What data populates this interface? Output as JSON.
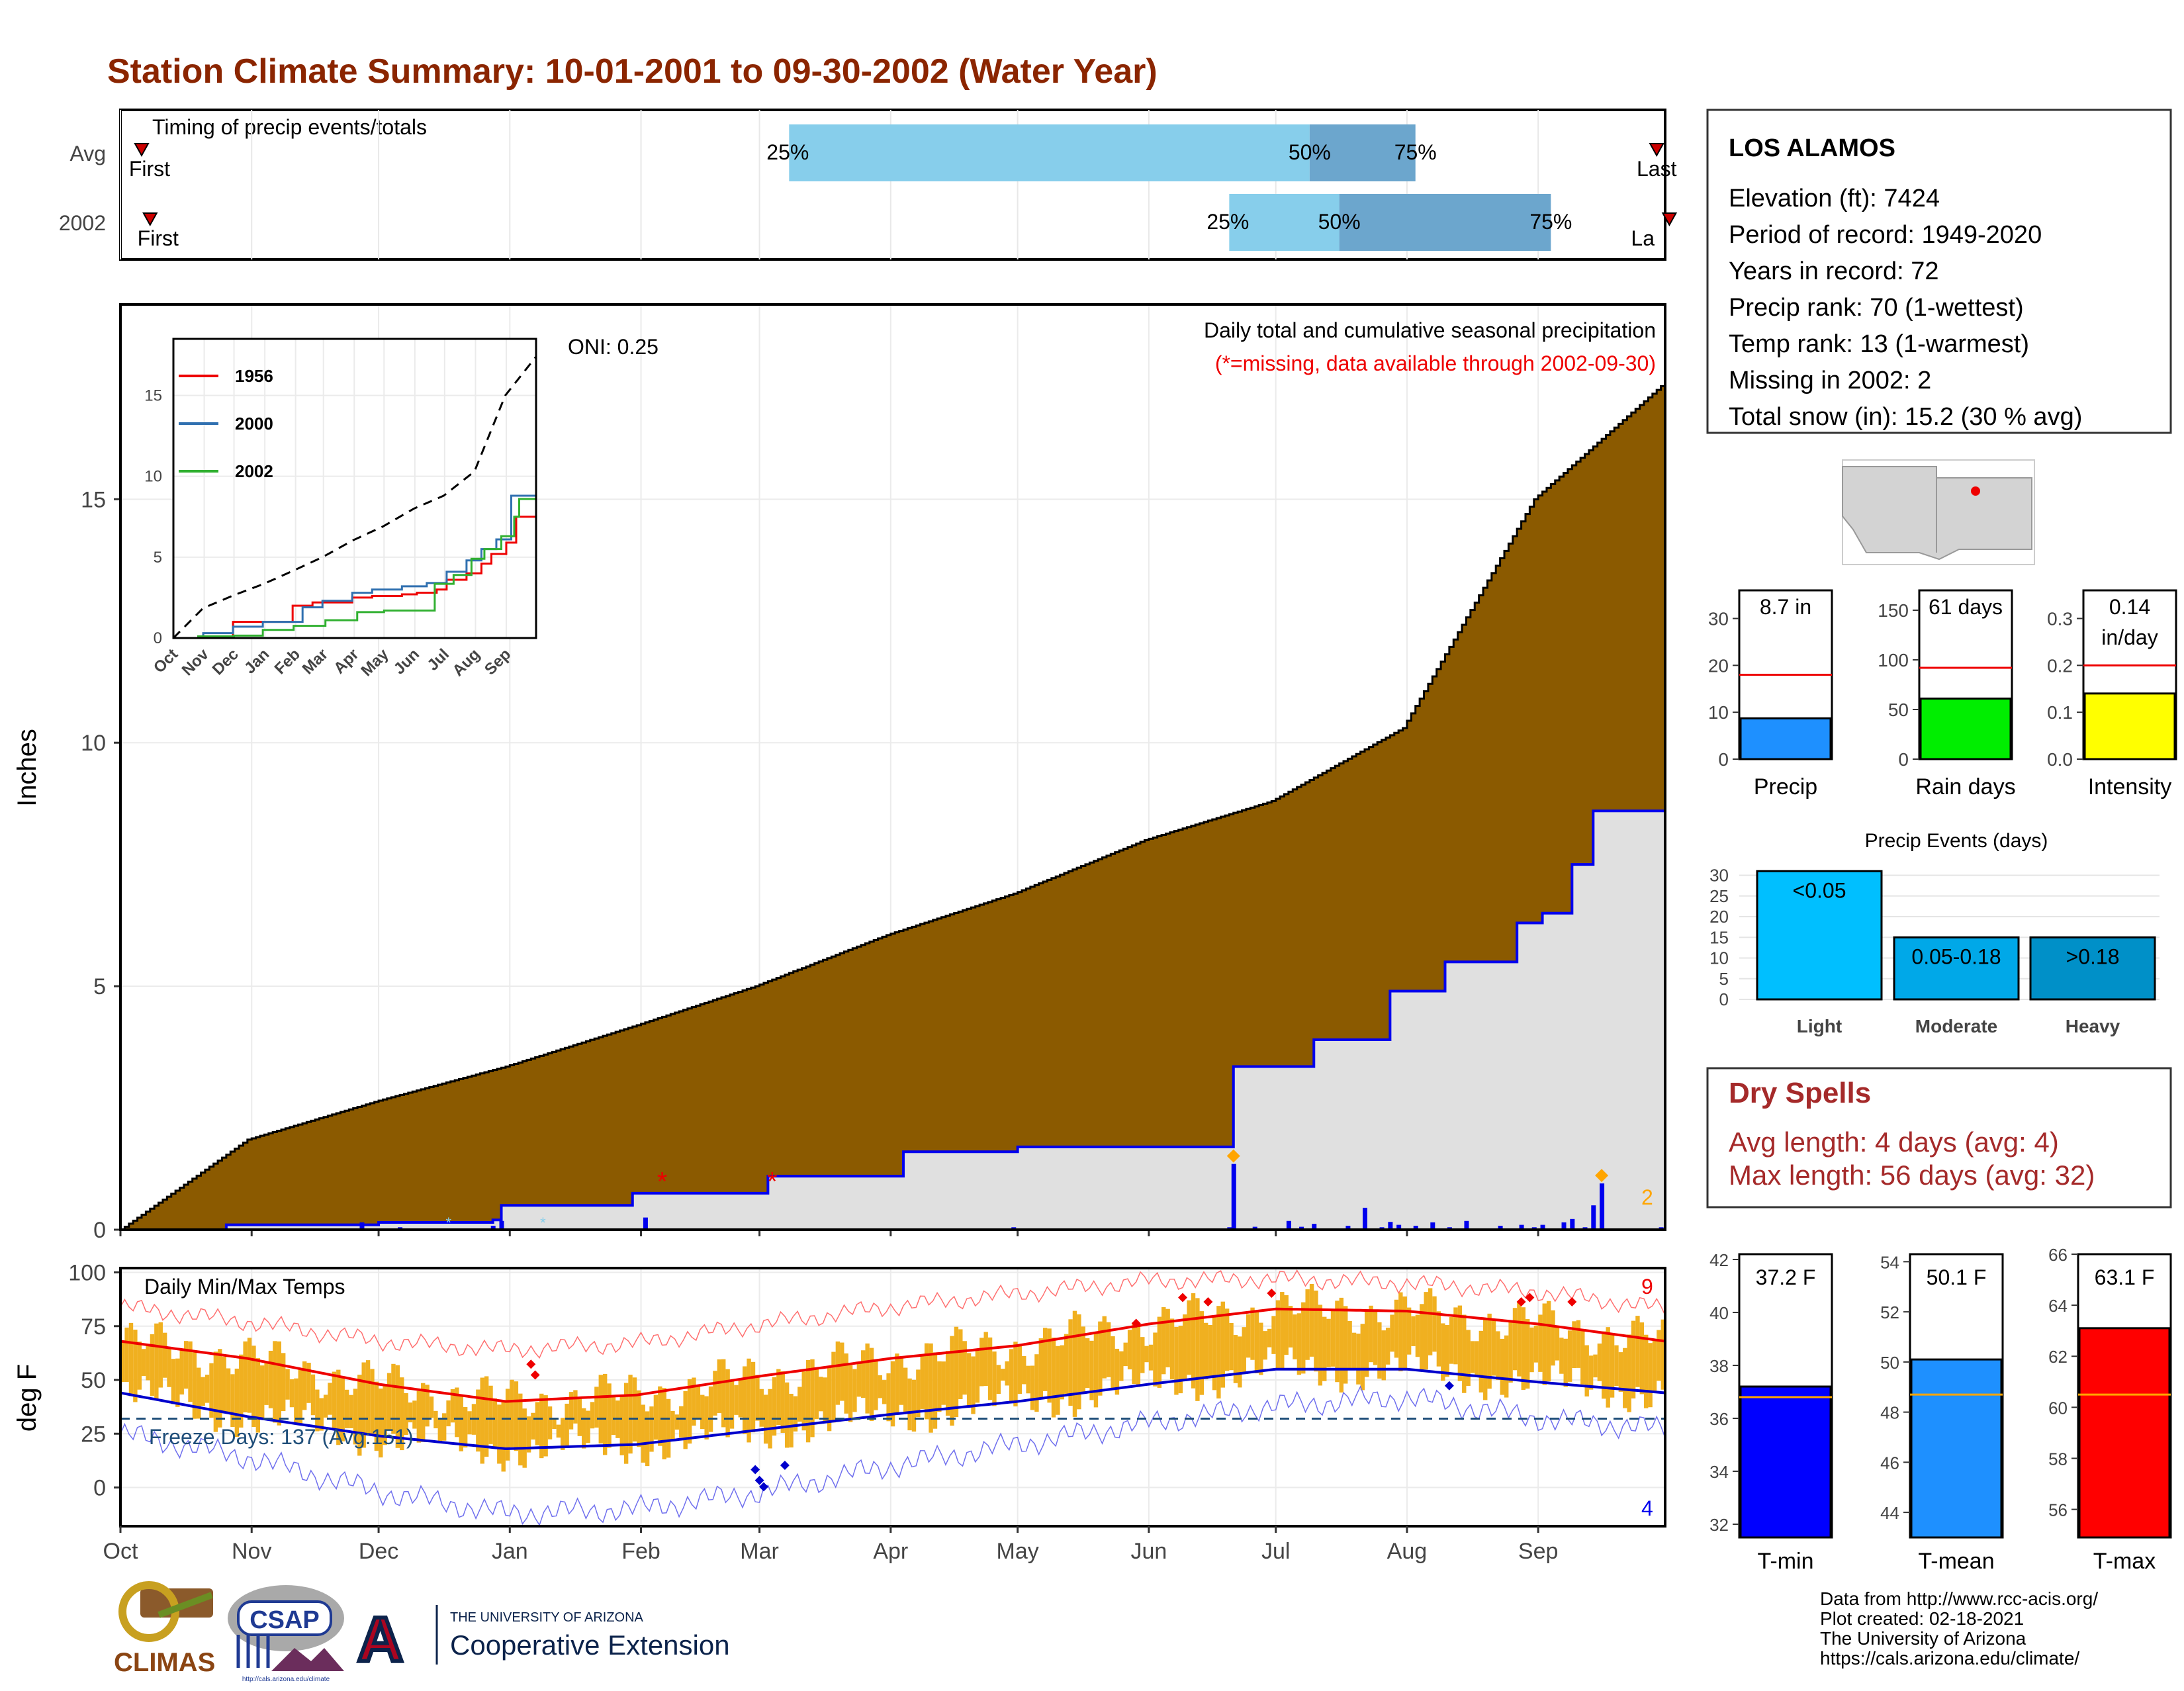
{
  "title": "Station Climate Summary: 10-01-2001 to 09-30-2002 (Water Year)",
  "station": {
    "name": "LOS ALAMOS",
    "lines": [
      "Elevation (ft): 7424",
      "Period of record: 1949-2020",
      "Years in record: 72",
      "Precip rank: 70 (1-wettest)",
      "Temp rank: 13 (1-warmest)",
      "Missing in 2002: 2",
      "Total snow (in): 15.2 (30 % avg)"
    ]
  },
  "colors": {
    "title": "#8B2500",
    "cum_avg": "#8B5A00",
    "cum_obs": "#0000EE",
    "area_obs": "#E0E0E0",
    "temp_bar": "#F0B020",
    "tmax_avg": "#EE0000",
    "tmin_avg": "#0000CC",
    "dry": "#A52A2A"
  },
  "timing": {
    "label": "Timing of precip events/totals",
    "rows": [
      "Avg",
      "2002"
    ],
    "first_label": "First",
    "last_label": "Last",
    "last_label_cut": "La",
    "pct": [
      "25%",
      "50%",
      "75%"
    ],
    "avg_doy": {
      "first": 5,
      "p25": 158,
      "p50": 281,
      "p75": 306,
      "last": 363
    },
    "obs_doy": {
      "first": 7,
      "p25": 262,
      "p50": 288,
      "p75": 338,
      "last": 366
    }
  },
  "months": [
    "Oct",
    "Nov",
    "Dec",
    "Jan",
    "Feb",
    "Mar",
    "Apr",
    "May",
    "Jun",
    "Jul",
    "Aug",
    "Sep"
  ],
  "chart_data": [
    {
      "type": "area",
      "ylabel": "Inches",
      "ylim": [
        0,
        19
      ],
      "yticks": [
        0,
        5,
        10,
        15
      ],
      "title": "Daily total and cumulative seasonal precipitation",
      "subtitle": "(*=missing, data available through 2002-09-30)",
      "oni": "ONI: 0.25",
      "count_label": "2",
      "avg_cum": {
        "doy": [
          0,
          30,
          61,
          91,
          122,
          150,
          181,
          211,
          242,
          272,
          303,
          334,
          365
        ],
        "in": [
          0,
          1.85,
          2.65,
          3.35,
          4.2,
          5.0,
          6.05,
          6.9,
          8.0,
          8.8,
          10.3,
          15.0,
          17.4
        ]
      },
      "obs_cum": {
        "doy": [
          0,
          25,
          61,
          88,
          90,
          115,
          121,
          140,
          153,
          176,
          185,
          199,
          205,
          212,
          236,
          240,
          245,
          262,
          263,
          273,
          282,
          295,
          300,
          306,
          313,
          320,
          330,
          336,
          343,
          346,
          348,
          365
        ],
        "in": [
          0,
          0.1,
          0.15,
          0.2,
          0.5,
          0.5,
          0.75,
          0.75,
          1.1,
          1.1,
          1.6,
          1.6,
          1.6,
          1.7,
          1.7,
          1.7,
          1.7,
          1.7,
          3.35,
          3.35,
          3.9,
          3.9,
          4.9,
          4.9,
          5.5,
          5.5,
          6.3,
          6.5,
          7.5,
          7.5,
          8.6,
          8.7
        ]
      },
      "daily": {
        "doy": [
          57,
          66,
          88,
          90,
          124,
          211,
          262,
          263,
          268,
          276,
          279,
          282,
          290,
          294,
          298,
          300,
          302,
          306,
          310,
          314,
          318,
          326,
          331,
          334,
          336,
          341,
          343,
          346,
          348,
          350,
          364
        ],
        "in": [
          0.15,
          0.05,
          0.08,
          0.18,
          0.25,
          0.05,
          0.05,
          1.35,
          0.06,
          0.18,
          0.06,
          0.12,
          0.08,
          0.45,
          0.05,
          0.16,
          0.1,
          0.08,
          0.15,
          0.05,
          0.18,
          0.08,
          0.1,
          0.05,
          0.1,
          0.15,
          0.22,
          0.05,
          0.5,
          0.95,
          0.05
        ]
      },
      "missing_doy": [
        128,
        154
      ]
    },
    {
      "type": "line",
      "xlabel": "",
      "ylabel": "",
      "x": [
        "Oct",
        "Nov",
        "Dec",
        "Jan",
        "Feb",
        "Mar",
        "Apr",
        "May",
        "Jun",
        "Jul",
        "Aug",
        "Sep"
      ],
      "ylim": [
        0,
        18.5
      ],
      "yticks": [
        0,
        5,
        10,
        15
      ],
      "series": [
        {
          "name": "1956",
          "color": "#EE0000",
          "doy": [
            0,
            60,
            80,
            120,
            140,
            180,
            200,
            230,
            245,
            265,
            275,
            295,
            310,
            320,
            335,
            345,
            365
          ],
          "in": [
            0,
            1.0,
            1.0,
            2.0,
            2.2,
            2.5,
            2.6,
            2.7,
            2.8,
            3.0,
            3.6,
            4.0,
            4.6,
            5.2,
            5.9,
            7.5,
            7.5
          ]
        },
        {
          "name": "2000",
          "color": "#3070B0",
          "doy": [
            0,
            30,
            60,
            90,
            130,
            150,
            180,
            200,
            230,
            255,
            275,
            295,
            310,
            325,
            340,
            365
          ],
          "in": [
            0,
            0.3,
            0.7,
            1.0,
            1.9,
            2.3,
            2.8,
            3.0,
            3.2,
            3.4,
            4.1,
            4.8,
            5.5,
            6.1,
            8.8,
            9.2
          ]
        },
        {
          "name": "2002",
          "color": "#30B030",
          "doy": [
            0,
            25,
            61,
            90,
            115,
            121,
            140,
            153,
            176,
            185,
            212,
            245,
            262,
            263,
            282,
            300,
            313,
            330,
            343,
            346,
            348,
            365
          ],
          "in": [
            0,
            0.1,
            0.15,
            0.5,
            0.5,
            0.75,
            0.75,
            1.1,
            1.1,
            1.6,
            1.7,
            1.7,
            1.7,
            3.35,
            3.9,
            4.9,
            5.5,
            6.3,
            7.5,
            7.5,
            8.6,
            8.7
          ]
        }
      ],
      "average_line": {
        "doy": [
          0,
          30,
          61,
          91,
          122,
          150,
          181,
          211,
          242,
          272,
          303,
          334,
          365
        ],
        "in": [
          0,
          1.85,
          2.65,
          3.35,
          4.2,
          5.0,
          6.05,
          6.9,
          8.0,
          8.8,
          10.3,
          15.0,
          17.4
        ]
      }
    },
    {
      "type": "bar",
      "title": "Daily Min/Max Temps",
      "ylabel": "deg F",
      "ylim": [
        -18,
        102
      ],
      "yticks": [
        0,
        25,
        50,
        75,
        100
      ],
      "freeze_text": "Freeze Days: 137 (Avg:151)",
      "freeze_line": 32,
      "count_hot": "9",
      "count_cold": "4",
      "tmax_avg": {
        "doy": [
          0,
          30,
          61,
          91,
          122,
          152,
          182,
          212,
          243,
          273,
          304,
          335,
          365
        ],
        "v": [
          68,
          60,
          48,
          40,
          43,
          52,
          60,
          66,
          76,
          83,
          82,
          76,
          68
        ]
      },
      "tmin_avg": {
        "doy": [
          0,
          30,
          61,
          91,
          122,
          152,
          182,
          212,
          243,
          273,
          304,
          335,
          365
        ],
        "v": [
          44,
          33,
          24,
          18,
          20,
          27,
          34,
          40,
          48,
          55,
          55,
          49,
          44
        ]
      },
      "rec_high": {
        "doy": [
          0,
          30,
          61,
          91,
          122,
          152,
          182,
          212,
          243,
          273,
          304,
          335,
          365
        ],
        "v": [
          84,
          77,
          68,
          64,
          67,
          76,
          84,
          90,
          96,
          97,
          95,
          91,
          83
        ]
      },
      "rec_low": {
        "doy": [
          0,
          30,
          61,
          91,
          122,
          152,
          182,
          212,
          243,
          273,
          304,
          335,
          365
        ],
        "v": [
          25,
          14,
          -2,
          -12,
          -10,
          -2,
          10,
          20,
          30,
          38,
          42,
          32,
          27
        ]
      }
    },
    {
      "type": "bar",
      "categories": [
        "Precip",
        "Rain days",
        "Intensity"
      ],
      "values": [
        8.7,
        61,
        0.14
      ],
      "labels": [
        "8.7 in",
        "61 days",
        "0.14"
      ],
      "label2": [
        "",
        "",
        "in/day"
      ],
      "avg": [
        18,
        92,
        0.2
      ],
      "ylim": [
        [
          0,
          36
        ],
        [
          0,
          170
        ],
        [
          0,
          0.36
        ]
      ],
      "yticks": [
        [
          0,
          10,
          20,
          30
        ],
        [
          0,
          50,
          100,
          150
        ],
        [
          "0.0",
          "0.1",
          "0.2",
          "0.3"
        ]
      ],
      "colors": [
        "#1E90FF",
        "#00EE00",
        "#FFFF00"
      ]
    },
    {
      "type": "bar",
      "title": "Precip Events (days)",
      "categories": [
        "Light",
        "Moderate",
        "Heavy"
      ],
      "values": [
        31,
        15,
        15
      ],
      "labels": [
        "<0.05",
        "0.05-0.18",
        ">0.18"
      ],
      "yticks": [
        0,
        5,
        10,
        15,
        20,
        25,
        30
      ],
      "colors": [
        "#00BFFF",
        "#00A8E8",
        "#0090C8"
      ]
    },
    {
      "type": "bar",
      "categories": [
        "T-min",
        "T-mean",
        "T-max"
      ],
      "values": [
        37.2,
        50.1,
        63.1
      ],
      "labels": [
        "37.2 F",
        "50.1 F",
        "63.1 F"
      ],
      "avg": [
        36.8,
        48.7,
        60.5
      ],
      "ylim": [
        [
          31.5,
          42.2
        ],
        [
          43,
          54.3
        ],
        [
          54.9,
          66
        ]
      ],
      "yticks": [
        [
          32,
          34,
          36,
          38,
          40,
          42
        ],
        [
          44,
          46,
          48,
          50,
          52,
          54
        ],
        [
          56,
          58,
          60,
          62,
          64,
          66
        ]
      ],
      "colors": [
        "#0000FF",
        "#1E90FF",
        "#FF0000"
      ]
    }
  ],
  "dry_spells": {
    "title": "Dry Spells",
    "avg": "Avg length: 4 days (avg: 4)",
    "max": "Max length: 56 days (avg: 32)"
  },
  "footer": [
    "Data from http://www.rcc-acis.org/",
    "Plot created: 02-18-2021",
    "The University of Arizona",
    "https://cals.arizona.edu/climate/"
  ],
  "logos": {
    "climas": "CLIMAS",
    "csap": "CSAP",
    "csap_url": "http://cals.arizona.edu/climate",
    "ua_small": "THE UNIVERSITY OF ARIZONA",
    "ua_big": "Cooperative Extension",
    "ua_letter": "A"
  }
}
